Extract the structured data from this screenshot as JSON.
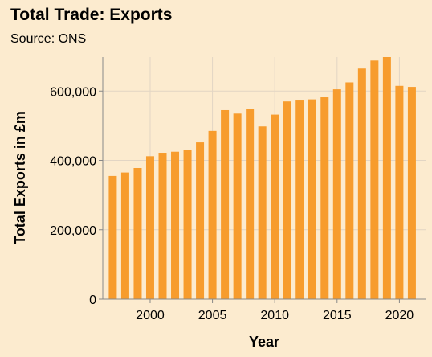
{
  "header": {
    "title": "Total Trade: Exports",
    "subtitle": "Source: ONS"
  },
  "colors": {
    "background": "#fcebcf",
    "bar": "#f79c2d",
    "grid": "#e2d5c4",
    "axis": "#888888"
  },
  "chart_data": {
    "type": "bar",
    "title": "Total Trade: Exports",
    "subtitle": "Source: ONS",
    "xlabel": "Year",
    "ylabel": "Total Exports in £m",
    "categories": [
      1997,
      1998,
      1999,
      2000,
      2001,
      2002,
      2003,
      2004,
      2005,
      2006,
      2007,
      2008,
      2009,
      2010,
      2011,
      2012,
      2013,
      2014,
      2015,
      2016,
      2017,
      2018,
      2019,
      2020,
      2021
    ],
    "values": [
      355000,
      365000,
      378000,
      412000,
      422000,
      425000,
      430000,
      452000,
      485000,
      545000,
      535000,
      548000,
      498000,
      532000,
      570000,
      575000,
      576000,
      582000,
      605000,
      625000,
      665000,
      688000,
      698000,
      615000,
      612000
    ],
    "xlim": [
      1996.2,
      2022.1
    ],
    "ylim": [
      0,
      698000
    ],
    "x_ticks": [
      2000,
      2005,
      2010,
      2015,
      2020
    ],
    "y_ticks": [
      0,
      200000,
      400000,
      600000
    ],
    "x_tick_labels": [
      "2000",
      "2005",
      "2010",
      "2015",
      "2020"
    ],
    "y_tick_labels": [
      "0",
      "200,000",
      "400,000",
      "600,000"
    ],
    "grid": true,
    "legend": "none"
  }
}
